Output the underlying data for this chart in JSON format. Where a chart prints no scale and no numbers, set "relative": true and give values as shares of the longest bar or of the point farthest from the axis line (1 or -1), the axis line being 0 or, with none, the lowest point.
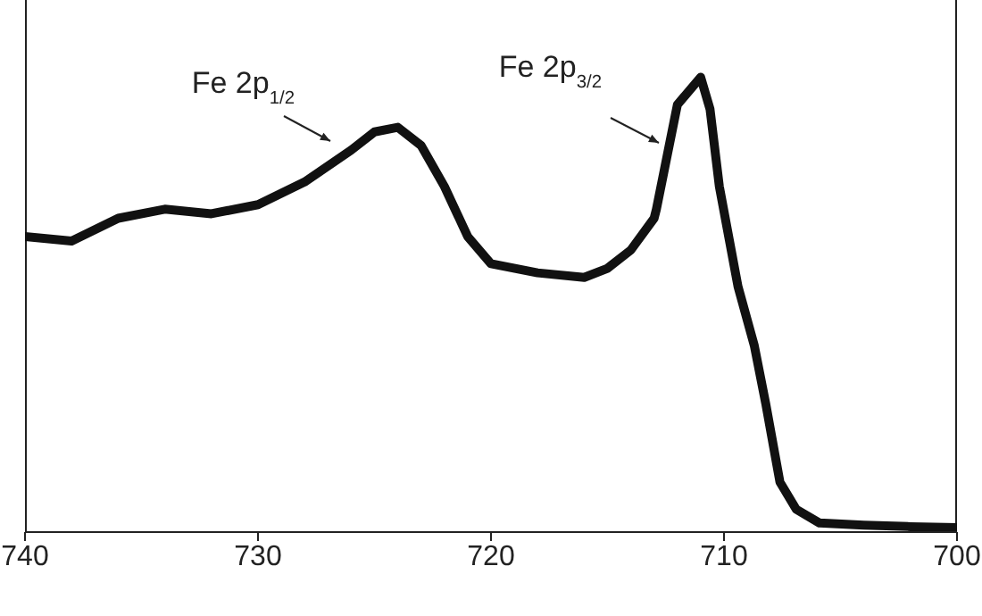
{
  "chart_data": {
    "type": "line",
    "relative": true,
    "xlim": [
      740,
      700
    ],
    "xticks": [
      740,
      730,
      720,
      710,
      700
    ],
    "marker": "none",
    "line_style": "solid",
    "x": [
      740,
      738,
      736,
      734,
      732,
      730,
      728,
      726,
      725,
      724,
      723,
      722,
      721,
      720,
      718,
      716,
      715,
      714,
      713,
      712.9,
      712,
      711,
      710.6,
      710.2,
      709.4,
      708.7,
      708.2,
      707.6,
      706.9,
      705.9,
      704,
      702,
      700
    ],
    "series": [
      {
        "color": "#111111",
        "values": [
          0.65,
          0.64,
          0.69,
          0.71,
          0.7,
          0.72,
          0.77,
          0.84,
          0.88,
          0.89,
          0.85,
          0.76,
          0.65,
          0.59,
          0.57,
          0.56,
          0.58,
          0.62,
          0.69,
          0.71,
          0.94,
          1,
          0.93,
          0.76,
          0.54,
          0.41,
          0.28,
          0.11,
          0.05,
          0.02,
          0.015,
          0.012,
          0.01
        ]
      }
    ],
    "annotations": [
      "Fe 2p$_{1/2}$",
      "Fe 2p$_{3/2}$"
    ]
  }
}
